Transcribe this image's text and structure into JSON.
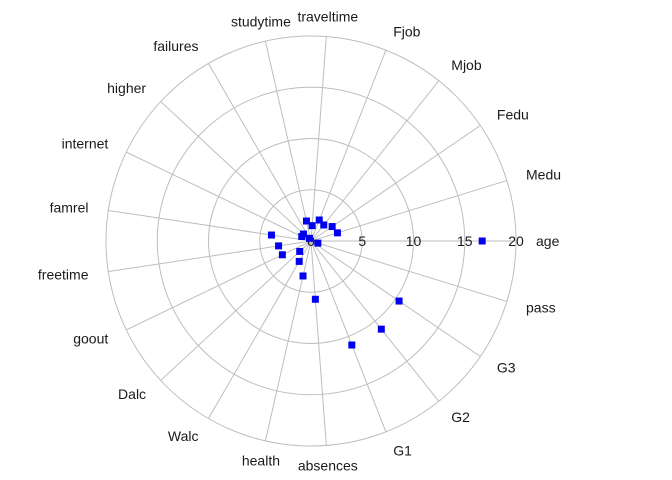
{
  "chart_data": {
    "type": "scatter",
    "subtype": "polar-radar",
    "title": "",
    "categories": [
      "age",
      "Medu",
      "Fedu",
      "Mjob",
      "Fjob",
      "traveltime",
      "studytime",
      "failures",
      "higher",
      "internet",
      "famrel",
      "freetime",
      "goout",
      "Dalc",
      "Walc",
      "health",
      "absences",
      "G1",
      "G2",
      "G3",
      "pass"
    ],
    "values": [
      16.7,
      2.7,
      2.5,
      2.0,
      2.2,
      1.5,
      2.0,
      0.3,
      1.0,
      1.0,
      3.9,
      3.2,
      3.1,
      1.5,
      2.3,
      3.5,
      5.7,
      10.9,
      11.0,
      10.4,
      0.7
    ],
    "series": [
      {
        "values": [
          16.7,
          2.7,
          2.5,
          2.0,
          2.2,
          1.5,
          2.0,
          0.3,
          1.0,
          1.0,
          3.9,
          3.2,
          3.1,
          1.5,
          2.3,
          3.5,
          5.7,
          10.9,
          11.0,
          10.4,
          0.7
        ],
        "color": "#0000ee"
      }
    ],
    "rlim": [
      0,
      20
    ],
    "radial_ticks": [
      "0",
      "5",
      "10",
      "15",
      "20"
    ],
    "radial_tick_values": [
      0,
      5,
      10,
      15,
      20
    ],
    "start_axis": "age",
    "start_direction": "east",
    "rotation": "counterclockwise",
    "grid": true,
    "grid_color": "#bebebe",
    "marker": "square",
    "marker_color": "#0000ee",
    "legend": "none"
  }
}
